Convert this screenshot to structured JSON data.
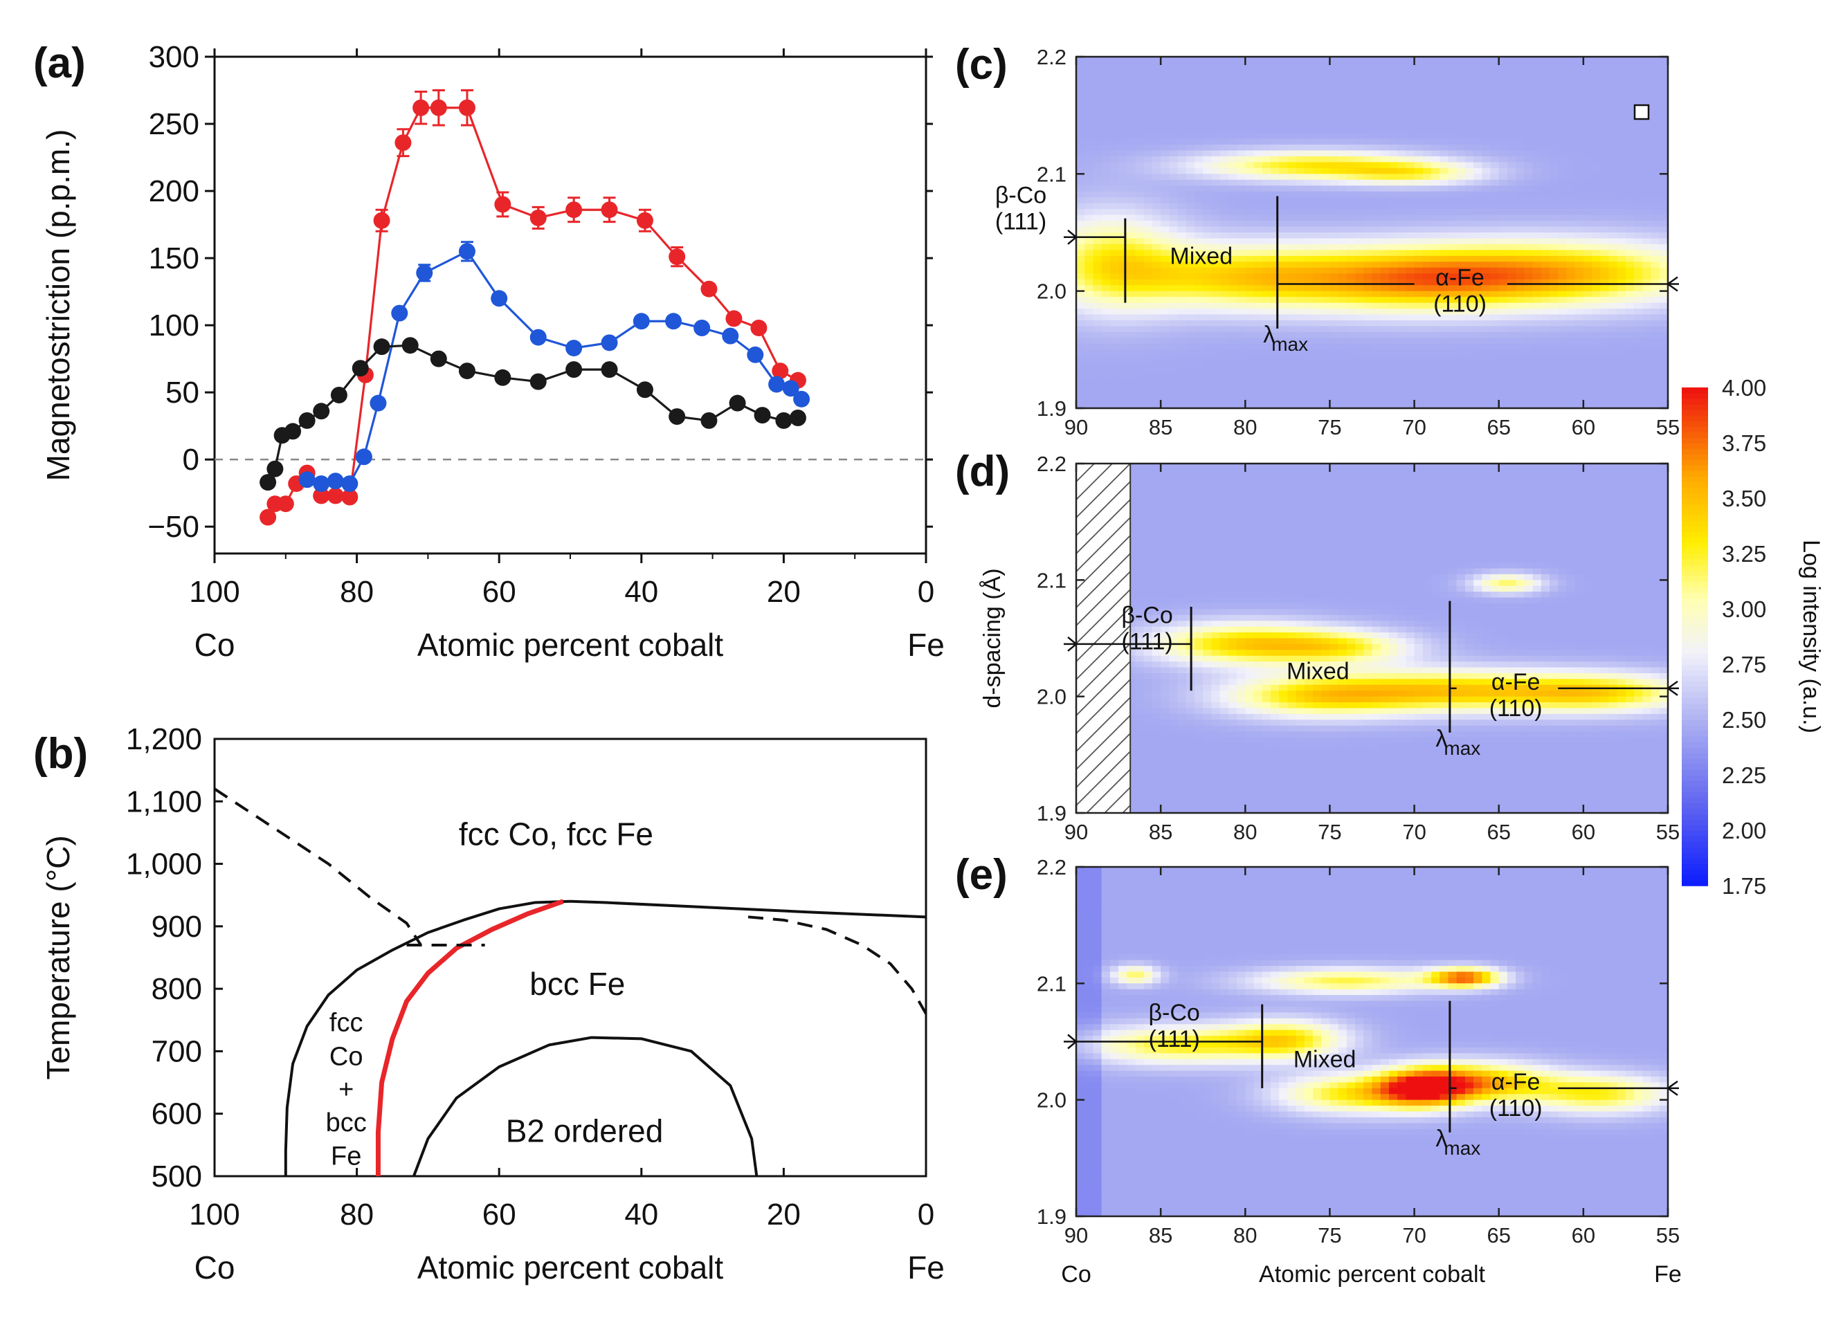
{
  "chart_data": [
    {
      "id": "a",
      "panel_label": "(a)",
      "type": "line",
      "xlabel": "Atomic percent cobalt",
      "ylabel": "Magnetostriction (p.p.m.)",
      "xlim": [
        100,
        0
      ],
      "ylim": [
        -70,
        300
      ],
      "xticks": [
        "100",
        "80",
        "60",
        "40",
        "20",
        "0"
      ],
      "yticks": [
        "300",
        "250",
        "200",
        "150",
        "100",
        "50",
        "0",
        "−50"
      ],
      "x_end_labels": {
        "left": "Co",
        "right": "Fe"
      },
      "zero_line": true,
      "series": [
        {
          "name": "red",
          "color": "#e8262a",
          "error_bars": true,
          "x": [
            92.5,
            91.5,
            90,
            88.5,
            87,
            85,
            83,
            81,
            78.8,
            76.5,
            73.5,
            71,
            68.5,
            64.5,
            59.5,
            54.5,
            49.5,
            44.5,
            39.5,
            35,
            30.5,
            27,
            23.5,
            20.5,
            18
          ],
          "y": [
            -43,
            -33,
            -33,
            -18,
            -10,
            -27,
            -27,
            -28,
            63,
            178,
            236,
            262,
            262,
            262,
            190,
            180,
            186,
            186,
            178,
            151,
            127,
            105,
            98,
            66,
            59
          ],
          "err": [
            0,
            0,
            0,
            0,
            0,
            0,
            0,
            0,
            0,
            8,
            10,
            12,
            13,
            13,
            9,
            8,
            9,
            9,
            8,
            7,
            0,
            0,
            0,
            0,
            0
          ]
        },
        {
          "name": "blue",
          "color": "#1f57d8",
          "error_bars": true,
          "x": [
            87,
            85,
            83,
            81,
            79,
            77,
            74,
            70.5,
            64.5,
            60,
            54.5,
            49.5,
            44.5,
            40,
            35.5,
            31.5,
            27.5,
            24,
            21,
            19,
            17.5
          ],
          "y": [
            -15,
            -18,
            -16,
            -18,
            2,
            42,
            109,
            139,
            155,
            120,
            91,
            83,
            87,
            103,
            103,
            98,
            92,
            78,
            56,
            53,
            45
          ],
          "err": [
            0,
            0,
            0,
            0,
            0,
            0,
            0,
            6,
            7,
            0,
            0,
            0,
            0,
            0,
            0,
            0,
            0,
            0,
            0,
            0,
            0
          ]
        },
        {
          "name": "black",
          "color": "#1a1a1a",
          "error_bars": false,
          "x": [
            92.5,
            91.5,
            90.5,
            89,
            87,
            85,
            82.5,
            79.5,
            76.5,
            72.5,
            68.5,
            64.5,
            59.5,
            54.5,
            49.5,
            44.5,
            39.5,
            35,
            30.5,
            26.5,
            23,
            20,
            18
          ],
          "y": [
            -17,
            -7,
            18,
            21,
            29,
            36,
            48,
            68,
            84,
            85,
            75,
            66,
            61,
            58,
            67,
            67,
            52,
            32,
            29,
            42,
            33,
            29,
            31
          ],
          "err": []
        }
      ]
    },
    {
      "id": "b",
      "panel_label": "(b)",
      "type": "line",
      "xlabel": "Atomic percent cobalt",
      "ylabel": "Temperature (°C)",
      "xlim": [
        100,
        0
      ],
      "ylim": [
        500,
        1200
      ],
      "xticks": [
        "100",
        "80",
        "60",
        "40",
        "20",
        "0"
      ],
      "yticks": [
        "1,200",
        "1,100",
        "1,000",
        "900",
        "800",
        "700",
        "600",
        "500"
      ],
      "x_end_labels": {
        "left": "Co",
        "right": "Fe"
      },
      "region_labels": {
        "fcc": "fcc Co, fcc Fe",
        "bcc": "bcc Fe",
        "two_phase": [
          "fcc",
          "Co",
          "+",
          "bcc",
          "Fe"
        ],
        "b2": "B2 ordered"
      },
      "curves": [
        {
          "name": "gamma-alpha boundary (Co side)",
          "style": "solid",
          "color": "#111111",
          "x": [
            90,
            90,
            89.8,
            89,
            87,
            84,
            80,
            75,
            70,
            65,
            60,
            55,
            50
          ],
          "y": [
            500,
            540,
            610,
            680,
            740,
            790,
            830,
            862,
            890,
            910,
            928,
            938,
            940
          ]
        },
        {
          "name": "gamma-alpha boundary (Fe side)",
          "style": "solid",
          "color": "#111111",
          "x": [
            50,
            45,
            30,
            15,
            0
          ],
          "y": [
            940,
            938,
            930,
            922,
            915
          ]
        },
        {
          "name": "red boundary",
          "style": "solid",
          "color": "#e8262a",
          "x": [
            77,
            77,
            76.5,
            75,
            73,
            70,
            66,
            61,
            56,
            51
          ],
          "y": [
            500,
            570,
            650,
            720,
            780,
            825,
            865,
            895,
            920,
            940
          ]
        },
        {
          "name": "B2 order-disorder",
          "style": "solid",
          "color": "#111111",
          "x": [
            72,
            70,
            66,
            60,
            53,
            47,
            40,
            33,
            27.5,
            24.5,
            23.8
          ],
          "y": [
            500,
            560,
            625,
            675,
            710,
            722,
            720,
            700,
            645,
            560,
            500
          ]
        },
        {
          "name": "magnetic transition (Co side)",
          "style": "dashed",
          "color": "#111111",
          "x": [
            100,
            92,
            84,
            78,
            73,
            71
          ],
          "y": [
            1120,
            1060,
            1000,
            945,
            905,
            870
          ]
        },
        {
          "name": "tie line",
          "style": "dashed",
          "color": "#111111",
          "x": [
            73,
            70,
            66,
            62
          ],
          "y": [
            870,
            870,
            870,
            870
          ]
        },
        {
          "name": "magnetic transition (Fe side)",
          "style": "dashed",
          "color": "#111111",
          "x": [
            25,
            20,
            14,
            9,
            5,
            2,
            0
          ],
          "y": [
            915,
            910,
            895,
            870,
            840,
            800,
            760
          ]
        }
      ]
    },
    {
      "id": "c",
      "panel_label": "(c)",
      "type": "heatmap",
      "xlim": [
        90,
        55
      ],
      "ylim": [
        1.9,
        2.2
      ],
      "xticks": [
        "90",
        "85",
        "80",
        "75",
        "70",
        "65",
        "60",
        "55"
      ],
      "yticks": [
        "2.2",
        "2.1",
        "2.0",
        "1.9"
      ],
      "labels": {
        "beta": [
          "β-Co",
          "(111)"
        ],
        "mixed": "Mixed",
        "alpha": [
          "α-Fe",
          "(110)"
        ],
        "lambda": "λ",
        "lambda_sub": "max"
      },
      "dividers_at": [
        87.1,
        78.1
      ],
      "lambda_max_at": 78.1,
      "peaks": [
        {
          "x": 76,
          "y": 2.107,
          "sx": 5,
          "sy": 0.009,
          "a": 0.85
        },
        {
          "x": 70,
          "y": 2.1,
          "sx": 3,
          "sy": 0.007,
          "a": 0.55
        },
        {
          "x": 88,
          "y": 2.025,
          "sx": 3,
          "sy": 0.03,
          "a": 0.75
        },
        {
          "x": 80,
          "y": 2.012,
          "sx": 5,
          "sy": 0.02,
          "a": 0.9
        },
        {
          "x": 70,
          "y": 2.01,
          "sx": 5,
          "sy": 0.02,
          "a": 0.95
        },
        {
          "x": 61,
          "y": 2.015,
          "sx": 6,
          "sy": 0.02,
          "a": 1.0
        }
      ]
    },
    {
      "id": "d",
      "panel_label": "(d)",
      "type": "heatmap",
      "xlim": [
        90,
        55
      ],
      "ylim": [
        1.9,
        2.2
      ],
      "ylabel": "d-spacing (Å)",
      "xticks": [
        "90",
        "85",
        "80",
        "75",
        "70",
        "65",
        "60",
        "55"
      ],
      "yticks": [
        "2.2",
        "2.1",
        "2.0",
        "1.9"
      ],
      "labels": {
        "beta": [
          "β-Co",
          "(111)"
        ],
        "mixed": "Mixed",
        "alpha": [
          "α-Fe",
          "(110)"
        ],
        "lambda": "λ",
        "lambda_sub": "max"
      },
      "dividers_at": [
        83.2,
        67.9
      ],
      "lambda_max_at": 67.9,
      "peaks": [
        {
          "x": 80,
          "y": 2.045,
          "sx": 4,
          "sy": 0.013,
          "a": 0.95
        },
        {
          "x": 74,
          "y": 2.042,
          "sx": 3,
          "sy": 0.01,
          "a": 0.6
        },
        {
          "x": 76,
          "y": 2.0,
          "sx": 4,
          "sy": 0.013,
          "a": 0.8
        },
        {
          "x": 68,
          "y": 2.005,
          "sx": 5,
          "sy": 0.013,
          "a": 0.9
        },
        {
          "x": 59,
          "y": 2.003,
          "sx": 4,
          "sy": 0.012,
          "a": 0.85
        },
        {
          "x": 64.5,
          "y": 2.097,
          "sx": 1.5,
          "sy": 0.006,
          "a": 0.7
        }
      ]
    },
    {
      "id": "e",
      "panel_label": "(e)",
      "type": "heatmap",
      "xlim": [
        90,
        55
      ],
      "ylim": [
        1.9,
        2.2
      ],
      "xlabel": "Atomic percent cobalt",
      "x_end_labels": {
        "left": "Co",
        "right": "Fe"
      },
      "xticks": [
        "90",
        "85",
        "80",
        "75",
        "70",
        "65",
        "60",
        "55"
      ],
      "yticks": [
        "2.2",
        "2.1",
        "2.0",
        "1.9"
      ],
      "labels": {
        "beta": [
          "β-Co",
          "(111)"
        ],
        "mixed": "Mixed",
        "alpha": [
          "α-Fe",
          "(110)"
        ],
        "lambda": "λ",
        "lambda_sub": "max"
      },
      "dividers_at": [
        79,
        67.9
      ],
      "lambda_max_at": 67.9,
      "peaks": [
        {
          "x": 86.5,
          "y": 2.107,
          "sx": 1,
          "sy": 0.006,
          "a": 0.7
        },
        {
          "x": 74,
          "y": 2.102,
          "sx": 4,
          "sy": 0.008,
          "a": 0.75
        },
        {
          "x": 67,
          "y": 2.105,
          "sx": 1.5,
          "sy": 0.006,
          "a": 1.25
        },
        {
          "x": 84,
          "y": 2.047,
          "sx": 4,
          "sy": 0.012,
          "a": 0.8
        },
        {
          "x": 77.5,
          "y": 2.052,
          "sx": 2.5,
          "sy": 0.012,
          "a": 0.8
        },
        {
          "x": 69.5,
          "y": 2.01,
          "sx": 2,
          "sy": 0.012,
          "a": 1.3
        },
        {
          "x": 66,
          "y": 2.015,
          "sx": 3,
          "sy": 0.012,
          "a": 1.0
        },
        {
          "x": 74,
          "y": 2.005,
          "sx": 3,
          "sy": 0.012,
          "a": 0.8
        },
        {
          "x": 59,
          "y": 2.005,
          "sx": 3,
          "sy": 0.012,
          "a": 0.8
        }
      ]
    },
    {
      "id": "colorbar",
      "type": "colorbar",
      "label": "Log intensity (a.u.)",
      "range": [
        1.75,
        4.0
      ],
      "ticks": [
        "4.00",
        "3.75",
        "3.50",
        "3.25",
        "3.00",
        "2.75",
        "2.50",
        "2.25",
        "2.00",
        "1.75"
      ],
      "stops": [
        {
          "v": 1.75,
          "color": "#0b1cff"
        },
        {
          "v": 2.1,
          "color": "#5c61f0"
        },
        {
          "v": 2.5,
          "color": "#aeb2f2"
        },
        {
          "v": 2.8,
          "color": "#f1f1fb"
        },
        {
          "v": 3.05,
          "color": "#ffffb0"
        },
        {
          "v": 3.3,
          "color": "#ffee00"
        },
        {
          "v": 3.6,
          "color": "#ffa800"
        },
        {
          "v": 4.0,
          "color": "#ee1010"
        }
      ]
    }
  ]
}
